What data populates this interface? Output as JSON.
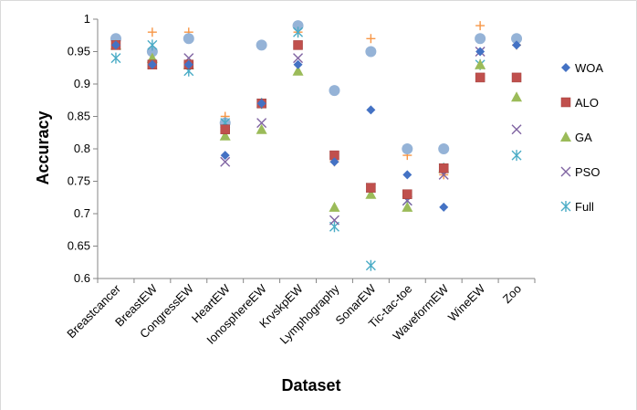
{
  "chart_data": {
    "type": "scatter",
    "title": "",
    "xlabel": "Dataset",
    "ylabel": "Accuracy",
    "ylim": [
      0.6,
      1.0
    ],
    "yticks": [
      0.6,
      0.65,
      0.7,
      0.75,
      0.8,
      0.85,
      0.9,
      0.95,
      1.0
    ],
    "ytick_labels": [
      "0.6",
      "0.65",
      "0.7",
      "0.75",
      "0.8",
      "0.85",
      "0.9",
      "0.95",
      "1"
    ],
    "grid": false,
    "legend_position": "right",
    "categories": [
      "Breastcancer",
      "BreastEW",
      "CongressEW",
      "HeartEW",
      "IonosphereEW",
      "KrvskpEW",
      "Lymphography",
      "SonarEW",
      "Tic-tac-toe",
      "WaveformEW",
      "WineEW",
      "Zoo"
    ],
    "series": [
      {
        "name": "WOA",
        "marker": "diamond",
        "color": "#4472C4",
        "values": [
          0.96,
          0.93,
          0.93,
          0.79,
          0.87,
          0.93,
          0.78,
          0.86,
          0.76,
          0.71,
          0.95,
          0.96
        ]
      },
      {
        "name": "ALO",
        "marker": "square",
        "color": "#C0504D",
        "values": [
          0.96,
          0.93,
          0.93,
          0.83,
          0.87,
          0.96,
          0.79,
          0.74,
          0.73,
          0.77,
          0.91,
          0.91
        ]
      },
      {
        "name": "GA",
        "marker": "triangle",
        "color": "#9BBB59",
        "values": [
          0.96,
          0.94,
          0.93,
          0.82,
          0.83,
          0.92,
          0.71,
          0.73,
          0.71,
          0.77,
          0.93,
          0.88
        ]
      },
      {
        "name": "PSO",
        "marker": "x",
        "color": "#8064A2",
        "values": [
          0.96,
          0.93,
          0.94,
          0.78,
          0.84,
          0.94,
          0.69,
          0.74,
          0.72,
          0.76,
          0.95,
          0.83
        ]
      },
      {
        "name": "Full",
        "marker": "asterisk",
        "color": "#4BACC6",
        "values": [
          0.94,
          0.96,
          0.92,
          0.84,
          0.87,
          0.98,
          0.68,
          0.62,
          0.72,
          0.77,
          0.93,
          0.79
        ]
      },
      {
        "name": "",
        "marker": "circle",
        "color": "#95B3D7",
        "values": [
          0.97,
          0.95,
          0.97,
          0.84,
          0.96,
          0.99,
          0.89,
          0.95,
          0.8,
          0.8,
          0.97,
          0.97
        ]
      },
      {
        "name": "",
        "marker": "plus",
        "color": "#F79646",
        "values": [
          0.96,
          0.98,
          0.98,
          0.85,
          0.87,
          0.98,
          0.78,
          0.97,
          0.79,
          0.76,
          0.99,
          0.96
        ]
      }
    ]
  }
}
